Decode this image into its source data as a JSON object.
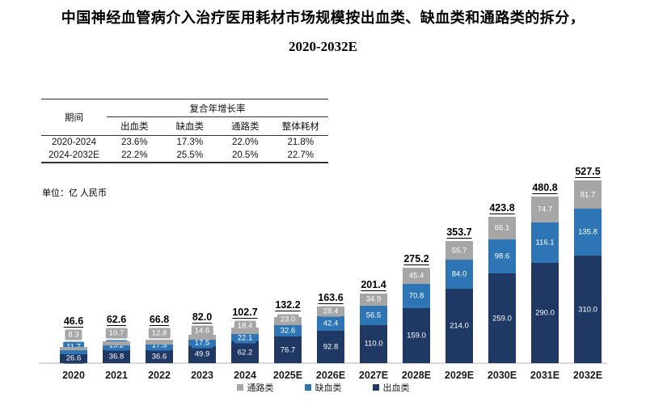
{
  "title": {
    "line1": "中国神经血管病介入治疗医用耗材市场规模按出血类、缺血类和通路类的拆分，",
    "line2": "2020-2032E"
  },
  "cagr_table": {
    "period_header": "期间",
    "group_header": "复合年增长率",
    "columns": [
      "出血类",
      "缺血类",
      "通路类",
      "整体耗材"
    ],
    "rows": [
      {
        "period": "2020-2024",
        "values": [
          "23.6%",
          "17.3%",
          "22.0%",
          "21.8%"
        ]
      },
      {
        "period": "2024-2032E",
        "values": [
          "22.2%",
          "25.5%",
          "20.5%",
          "22.7%"
        ]
      }
    ]
  },
  "unit_label": "单位：亿 人民币",
  "chart_data": {
    "type": "bar",
    "stacked": true,
    "title": "中国神经血管病介入治疗医用耗材市场规模按出血类、缺血类和通路类的拆分，2020-2032E",
    "value_unit": "亿 人民币",
    "grid": false,
    "legend_position": "bottom",
    "categories": [
      "2020",
      "2021",
      "2022",
      "2023",
      "2024",
      "2025E",
      "2026E",
      "2027E",
      "2028E",
      "2029E",
      "2030E",
      "2031E",
      "2032E"
    ],
    "series": [
      {
        "key": "hemorrhagic",
        "name": "出血类",
        "color": "#1F3864",
        "values": [
          26.6,
          36.8,
          36.6,
          49.9,
          62.2,
          76.7,
          92.8,
          110.0,
          159.0,
          214.0,
          259.0,
          290.0,
          310.0
        ]
      },
      {
        "key": "ischemic",
        "name": "缺血类",
        "color": "#2E75B6",
        "values": [
          11.7,
          15.2,
          17.5,
          17.5,
          22.1,
          32.6,
          42.4,
          56.5,
          70.8,
          84.0,
          98.6,
          116.1,
          135.8
        ]
      },
      {
        "key": "access",
        "name": "通路类",
        "color": "#A6A6A6",
        "values": [
          8.3,
          10.7,
          12.8,
          14.6,
          18.4,
          23.0,
          28.4,
          34.9,
          45.4,
          55.7,
          66.1,
          74.7,
          81.7
        ]
      }
    ],
    "totals": [
      46.6,
      62.6,
      66.8,
      82.0,
      102.7,
      132.2,
      163.6,
      201.4,
      275.2,
      353.7,
      423.8,
      480.8,
      527.5
    ],
    "legend": [
      "通路类",
      "缺血类",
      "出血类"
    ]
  }
}
